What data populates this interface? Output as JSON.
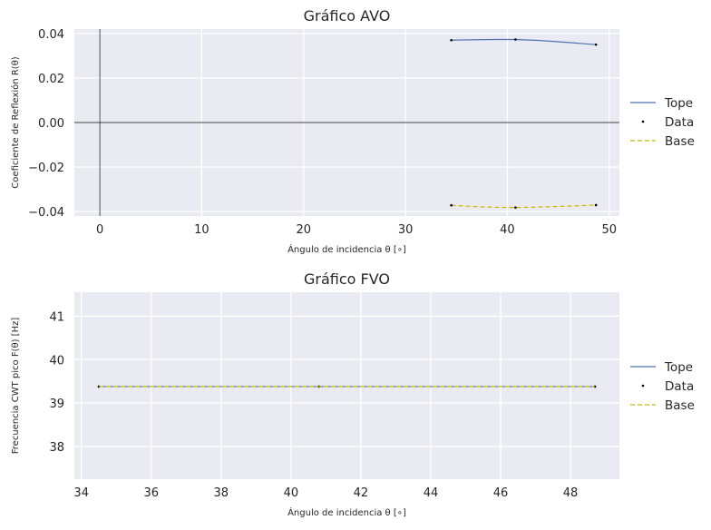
{
  "colors": {
    "background": "#eaeaf2",
    "grid": "#ffffff",
    "tope": "#4c72b0",
    "base": "#ccb900",
    "data": "#000000",
    "axisline": "#000000"
  },
  "chart_data": [
    {
      "type": "line",
      "title": "Gráfico AVO",
      "xlabel": "Ángulo de incidencia θ [∘]",
      "ylabel": "Coeficiente de Reflexión R(θ)",
      "xlim": [
        -2.5,
        51.0
      ],
      "ylim": [
        -0.042,
        0.042
      ],
      "grid": true,
      "legend_placement": "outside-right",
      "xticks": [
        0,
        10,
        20,
        30,
        40,
        50
      ],
      "xtick_labels": [
        "0",
        "10",
        "20",
        "30",
        "40",
        "50"
      ],
      "yticks": [
        -0.04,
        -0.02,
        0.0,
        0.02,
        0.04
      ],
      "ytick_labels": [
        "−0.04",
        "−0.02",
        "0.00",
        "0.02",
        "0.04"
      ],
      "reference_lines": {
        "x": 0,
        "y": 0
      },
      "series": [
        {
          "name": "Tope",
          "style": "line",
          "x": [
            34.5,
            37.0,
            39.0,
            40.8,
            43.0,
            45.0,
            47.0,
            48.7
          ],
          "y": [
            0.037,
            0.0372,
            0.0373,
            0.0373,
            0.0369,
            0.0363,
            0.0356,
            0.035
          ]
        },
        {
          "name": "Data",
          "style": "points",
          "x": [
            34.5,
            40.8,
            48.7
          ],
          "y": [
            0.037,
            0.0373,
            0.035
          ]
        },
        {
          "name": "Base",
          "style": "dashed",
          "x": [
            34.5,
            37.0,
            39.0,
            40.8,
            43.0,
            45.0,
            47.0,
            48.7
          ],
          "y": [
            -0.0372,
            -0.0378,
            -0.0381,
            -0.0382,
            -0.038,
            -0.0377,
            -0.0374,
            -0.0371
          ]
        },
        {
          "name": "",
          "style": "points",
          "x": [
            34.5,
            40.8,
            48.7
          ],
          "y": [
            -0.0372,
            -0.0382,
            -0.0371
          ]
        }
      ]
    },
    {
      "type": "line",
      "title": "Gráfico FVO",
      "xlabel": "Ángulo de incidencia θ [∘]",
      "ylabel": "Frecuencia CWT pico F(θ) [Hz]",
      "xlim": [
        33.8,
        49.4
      ],
      "ylim": [
        37.25,
        41.55
      ],
      "grid": true,
      "legend_placement": "outside-right",
      "xticks": [
        34,
        36,
        38,
        40,
        42,
        44,
        46,
        48
      ],
      "xtick_labels": [
        "34",
        "36",
        "38",
        "40",
        "42",
        "44",
        "46",
        "48"
      ],
      "yticks": [
        38,
        39,
        40,
        41
      ],
      "ytick_labels": [
        "38",
        "39",
        "40",
        "41"
      ],
      "series": [
        {
          "name": "Tope",
          "style": "line",
          "x": [
            34.5,
            40.8,
            48.7
          ],
          "y": [
            39.38,
            39.38,
            39.38
          ]
        },
        {
          "name": "Data",
          "style": "points",
          "x": [
            34.5,
            40.8,
            48.7
          ],
          "y": [
            39.38,
            39.38,
            39.38
          ]
        },
        {
          "name": "Base",
          "style": "dashed",
          "x": [
            34.5,
            40.8,
            48.7
          ],
          "y": [
            39.38,
            39.38,
            39.38
          ]
        }
      ]
    }
  ]
}
